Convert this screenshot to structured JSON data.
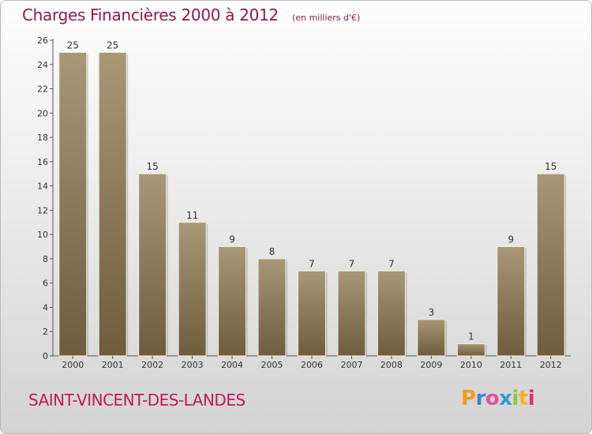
{
  "header": {
    "title": "Charges Financières 2000 à 2012",
    "subtitle": "(en milliers d'€)"
  },
  "footer": {
    "commune": "SAINT-VINCENT-DES-LANDES",
    "logo_letters": [
      "P",
      "r",
      "o",
      "x",
      "i",
      "t",
      "i"
    ],
    "logo_colors": [
      "#f59a1a",
      "#3b86c8",
      "#e84f9a",
      "#2f9ad6",
      "#8dc63f",
      "#f7b21b",
      "#e0306b"
    ]
  },
  "colors": {
    "bar_top": "#a89877",
    "bar_bottom": "#6e5c3d",
    "axis": "#555555",
    "grid": "#cccccc"
  },
  "chart_data": {
    "type": "bar",
    "categories": [
      "2000",
      "2001",
      "2002",
      "2003",
      "2004",
      "2005",
      "2006",
      "2007",
      "2008",
      "2009",
      "2010",
      "2011",
      "2012"
    ],
    "values": [
      25,
      25,
      15,
      11,
      9,
      8,
      7,
      7,
      7,
      3,
      1,
      9,
      15
    ],
    "title": "Charges Financières 2000 à 2012",
    "subtitle": "(en milliers d'€)",
    "xlabel": "",
    "ylabel": "",
    "ylim": [
      0,
      26
    ],
    "yticks": [
      0,
      2,
      4,
      6,
      8,
      10,
      12,
      14,
      16,
      18,
      20,
      22,
      24,
      26
    ],
    "grid": false,
    "data_labels": true
  }
}
